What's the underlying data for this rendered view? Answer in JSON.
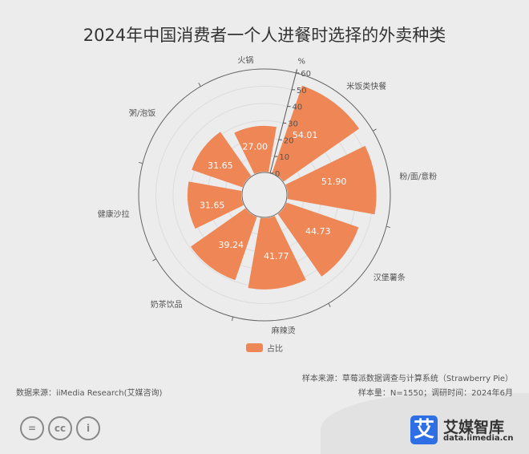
{
  "title": "2024年中国消费者一个人进餐时选择的外卖种类",
  "chart_data": {
    "type": "polar-bar",
    "title": "2024年中国消费者一个人进餐时选择的外卖种类",
    "radial_axis_label": "%",
    "radial_range": [
      0,
      60
    ],
    "radial_ticks": [
      0,
      10,
      20,
      30,
      40,
      50,
      60
    ],
    "categories": [
      "火锅",
      "米饭类快餐",
      "粉/面/意粉",
      "汉堡薯条",
      "麻辣烫",
      "奶茶饮品",
      "健康沙拉",
      "粥/泡饭"
    ],
    "series": [
      {
        "name": "占比",
        "values": [
          27.0,
          54.01,
          51.9,
          44.73,
          41.77,
          39.24,
          31.65,
          31.65
        ],
        "color": "#ee8655"
      }
    ],
    "legend": "bottom",
    "grid": true
  },
  "footer": {
    "data_source": "数据来源：iiMedia Research(艾媒咨询)",
    "sample_source": "样本来源：草莓派数据调查与计算系统（Strawberry Pie）",
    "sample_size": "样本量：N=1550；调研时间：2024年6月"
  },
  "license_icons": [
    "equals-icon",
    "cc-icon",
    "person-icon"
  ],
  "license_text": [
    "=",
    "cc",
    "i"
  ],
  "brand": {
    "mark": "艾",
    "name": "艾媒智库",
    "url": "data.iimedia.cn",
    "color": "#2f6fe6"
  }
}
